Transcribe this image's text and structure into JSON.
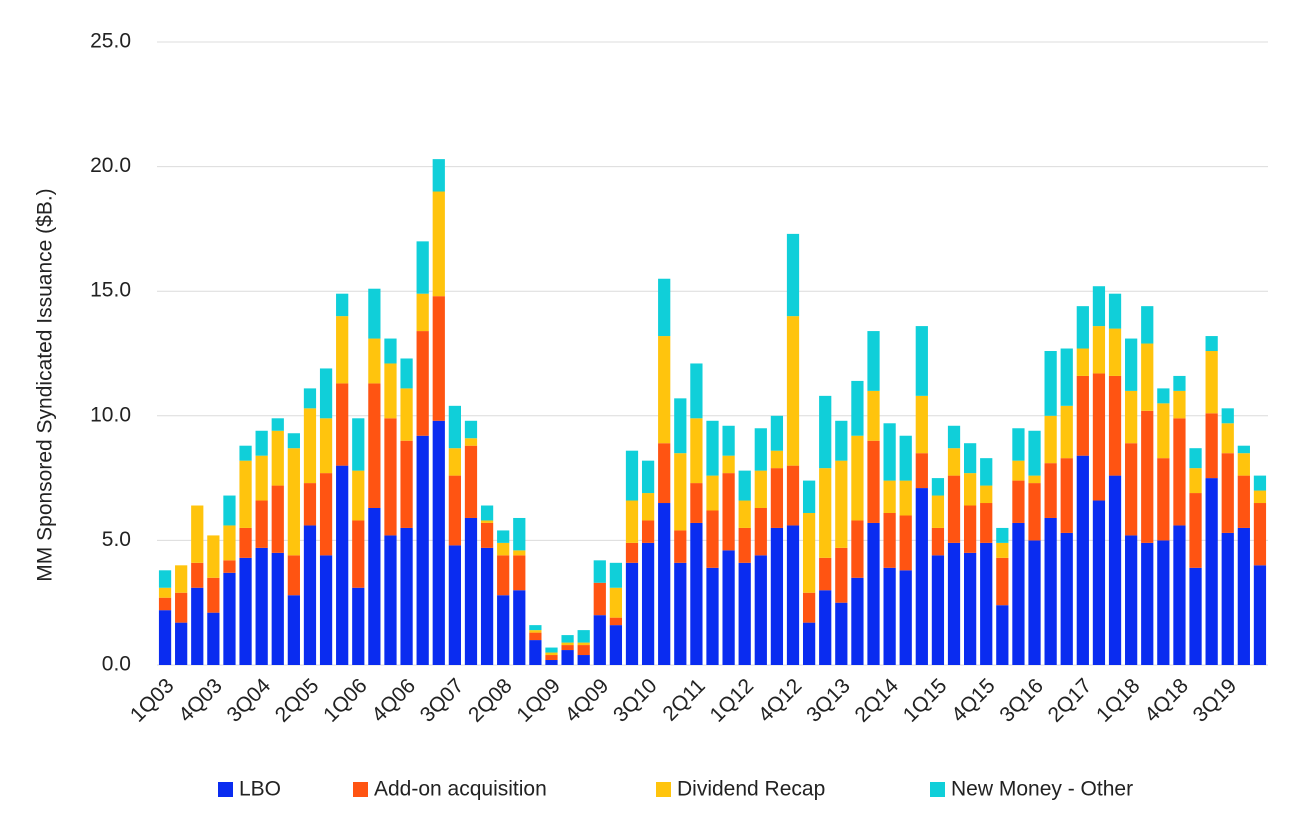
{
  "chart_data": {
    "type": "stacked_bar",
    "y_label": "MM Sponsored Syndicated Issuance ($B.)",
    "categories": [
      "1Q03",
      null,
      null,
      "4Q03",
      null,
      null,
      "3Q04",
      null,
      null,
      "2Q05",
      null,
      null,
      "1Q06",
      null,
      null,
      "4Q06",
      null,
      null,
      "3Q07",
      null,
      null,
      "2Q08",
      null,
      null,
      "1Q09",
      null,
      null,
      "4Q09",
      null,
      null,
      "3Q10",
      null,
      null,
      "2Q11",
      null,
      null,
      "1Q12",
      null,
      null,
      "4Q12",
      null,
      null,
      "3Q13",
      null,
      null,
      "2Q14",
      null,
      null,
      "1Q15",
      null,
      null,
      "4Q15",
      null,
      null,
      "3Q16",
      null,
      null,
      "2Q17",
      null,
      null,
      "1Q18",
      null,
      null,
      "4Q18",
      null,
      null,
      "3Q19",
      null,
      null
    ],
    "series": [
      {
        "name": "LBO",
        "color": "#0a2cf0",
        "values": [
          2.2,
          1.7,
          3.1,
          2.1,
          3.7,
          4.3,
          4.7,
          4.5,
          2.8,
          5.6,
          4.4,
          8.0,
          3.1,
          6.3,
          5.2,
          5.5,
          9.2,
          9.8,
          4.8,
          5.9,
          4.7,
          2.8,
          3.0,
          1.0,
          0.2,
          0.6,
          0.4,
          2.0,
          1.6,
          4.1,
          4.9,
          6.5,
          4.1,
          5.7,
          3.9,
          4.6,
          4.1,
          4.4,
          5.5,
          5.6,
          1.7,
          3.0,
          2.5,
          3.5,
          5.7,
          3.9,
          3.8,
          7.1,
          4.4,
          4.9,
          4.5,
          4.9,
          2.4,
          5.7,
          5.0,
          5.9,
          5.3,
          8.4,
          6.6,
          7.6,
          5.2,
          4.9,
          5.0,
          5.6,
          3.9,
          7.5,
          5.3,
          5.5,
          4.0
        ]
      },
      {
        "name": "Add-on acquisition",
        "color": "#ff5412",
        "values": [
          0.5,
          1.2,
          1.0,
          1.4,
          0.5,
          1.2,
          1.9,
          2.7,
          1.6,
          1.7,
          3.3,
          3.3,
          2.7,
          5.0,
          4.7,
          3.5,
          4.2,
          5.0,
          2.8,
          2.9,
          1.0,
          1.6,
          1.4,
          0.3,
          0.2,
          0.2,
          0.4,
          1.3,
          0.3,
          0.8,
          0.9,
          2.4,
          1.3,
          1.6,
          2.3,
          3.1,
          1.4,
          1.9,
          2.4,
          2.4,
          1.2,
          1.3,
          2.2,
          2.3,
          3.3,
          2.2,
          2.2,
          1.4,
          1.1,
          2.7,
          1.9,
          1.6,
          1.9,
          1.7,
          2.3,
          2.2,
          3.0,
          3.2,
          5.1,
          4.0,
          3.7,
          5.3,
          3.3,
          4.3,
          3.0,
          2.6,
          3.2,
          2.1,
          2.5
        ]
      },
      {
        "name": "Dividend Recap",
        "color": "#ffc40d",
        "values": [
          0.4,
          1.1,
          2.3,
          1.7,
          1.4,
          2.7,
          1.8,
          2.2,
          4.3,
          3.0,
          2.2,
          2.7,
          2.0,
          1.8,
          2.2,
          2.1,
          1.5,
          4.2,
          1.1,
          0.3,
          0.1,
          0.5,
          0.2,
          0.1,
          0.1,
          0.1,
          0.1,
          0.0,
          1.2,
          1.7,
          1.1,
          4.3,
          3.1,
          2.6,
          1.4,
          0.7,
          1.1,
          1.5,
          0.7,
          6.0,
          3.2,
          3.6,
          3.5,
          3.4,
          2.0,
          1.3,
          1.4,
          2.3,
          1.3,
          1.1,
          1.3,
          0.7,
          0.6,
          0.8,
          0.3,
          1.9,
          2.1,
          1.1,
          1.9,
          1.9,
          2.1,
          2.7,
          2.2,
          1.1,
          1.0,
          2.5,
          1.2,
          0.9,
          0.5
        ]
      },
      {
        "name": "New Money - Other",
        "color": "#10cfd9",
        "values": [
          0.7,
          0.0,
          0.0,
          0.0,
          1.2,
          0.6,
          1.0,
          0.5,
          0.6,
          0.8,
          2.0,
          0.9,
          2.1,
          2.0,
          1.0,
          1.2,
          2.1,
          1.3,
          1.7,
          0.7,
          0.6,
          0.5,
          1.3,
          0.2,
          0.2,
          0.3,
          0.5,
          0.9,
          1.0,
          2.0,
          1.3,
          2.3,
          2.2,
          2.2,
          2.2,
          1.2,
          1.2,
          1.7,
          1.4,
          3.3,
          1.3,
          2.9,
          1.6,
          2.2,
          2.4,
          2.3,
          1.8,
          2.8,
          0.7,
          0.9,
          1.2,
          1.1,
          0.6,
          1.3,
          1.8,
          2.6,
          2.3,
          1.7,
          1.6,
          1.4,
          2.1,
          1.5,
          0.6,
          0.6,
          0.8,
          0.6,
          0.6,
          0.3,
          0.6
        ]
      }
    ],
    "ylim": [
      0,
      25
    ],
    "yticks": [
      {
        "value": 0,
        "label": "0.0"
      },
      {
        "value": 5,
        "label": "5.0"
      },
      {
        "value": 10,
        "label": "10.0"
      },
      {
        "value": 15,
        "label": "15.0"
      },
      {
        "value": 20,
        "label": "20.0"
      },
      {
        "value": 25,
        "label": "25.0"
      }
    ],
    "grid": true,
    "legend": "bottom"
  }
}
